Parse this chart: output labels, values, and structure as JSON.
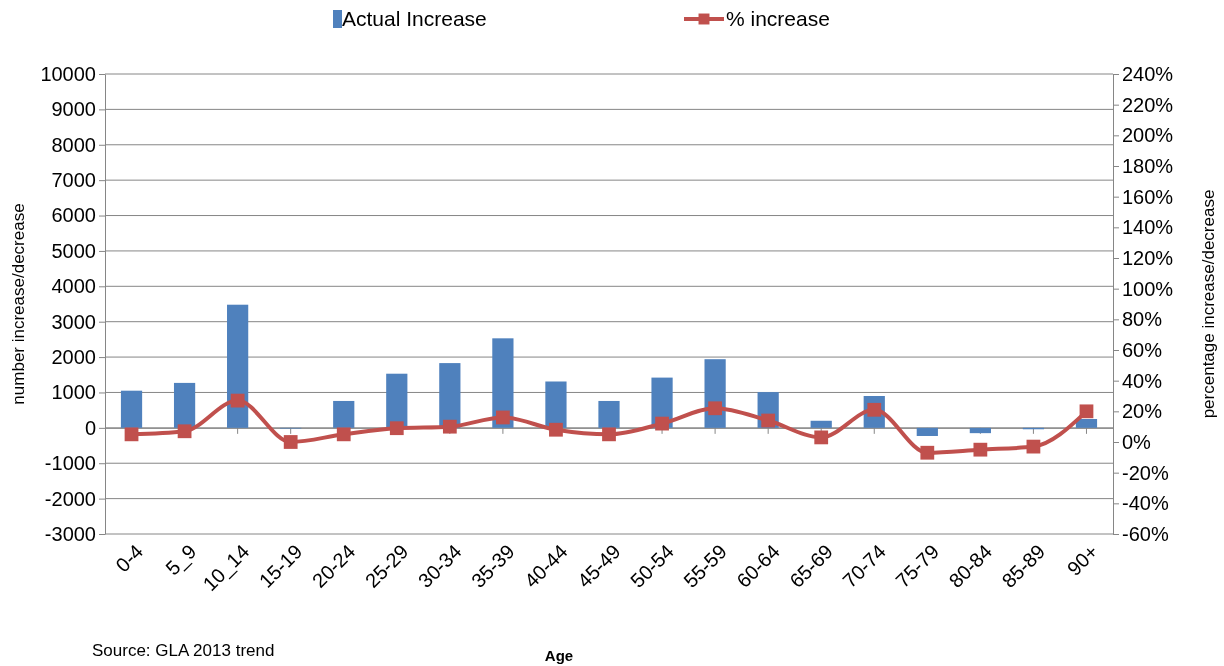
{
  "chart_data": {
    "type": "bar",
    "xlabel": "Age",
    "ylabel": "number increase/decrease",
    "y2label": "percentage increase/decrease",
    "categories": [
      "0-4",
      "5_9",
      "10_14",
      "15-19",
      "20-24",
      "25-29",
      "30-34",
      "35-39",
      "40-44",
      "45-49",
      "50-54",
      "55-59",
      "60-64",
      "65-69",
      "70-74",
      "75-79",
      "80-84",
      "85-89",
      "90+"
    ],
    "series": [
      {
        "name": "Actual Increase",
        "color": "#4f81bd",
        "values": [
          1050,
          1270,
          3480,
          -20,
          760,
          1530,
          1830,
          2530,
          1310,
          760,
          1420,
          1940,
          1010,
          200,
          900,
          -230,
          -150,
          -40,
          250
        ]
      },
      {
        "name": "% increase",
        "color": "#c0504d",
        "type": "line",
        "axis": "y2",
        "marker": "square",
        "values": [
          5,
          7,
          27,
          0,
          5,
          9,
          10,
          16,
          8,
          5,
          12,
          22,
          14,
          3,
          21,
          -7,
          -5,
          -3,
          20
        ]
      }
    ],
    "ylim": [
      -3000,
      10000
    ],
    "yticks": [
      -3000,
      -2000,
      -1000,
      0,
      1000,
      2000,
      3000,
      4000,
      5000,
      6000,
      7000,
      8000,
      9000,
      10000
    ],
    "y2lim": [
      -60,
      240
    ],
    "y2ticks": [
      {
        "value": -60,
        "label": "-60%"
      },
      {
        "value": -40,
        "label": "-40%"
      },
      {
        "value": -20,
        "label": "-20%"
      },
      {
        "value": 0,
        "label": "0%"
      },
      {
        "value": 20,
        "label": "20%"
      },
      {
        "value": 40,
        "label": "40%"
      },
      {
        "value": 60,
        "label": "60%"
      },
      {
        "value": 80,
        "label": "80%"
      },
      {
        "value": 100,
        "label": "100%"
      },
      {
        "value": 120,
        "label": "120%"
      },
      {
        "value": 140,
        "label": "140%"
      },
      {
        "value": 160,
        "label": "160%"
      },
      {
        "value": 180,
        "label": "180%"
      },
      {
        "value": 200,
        "label": "200%"
      },
      {
        "value": 220,
        "label": "220%"
      },
      {
        "value": 240,
        "label": "240%"
      }
    ],
    "grid": "y",
    "legend": "top",
    "annotations": [
      "Source: GLA 2013 trend"
    ]
  }
}
